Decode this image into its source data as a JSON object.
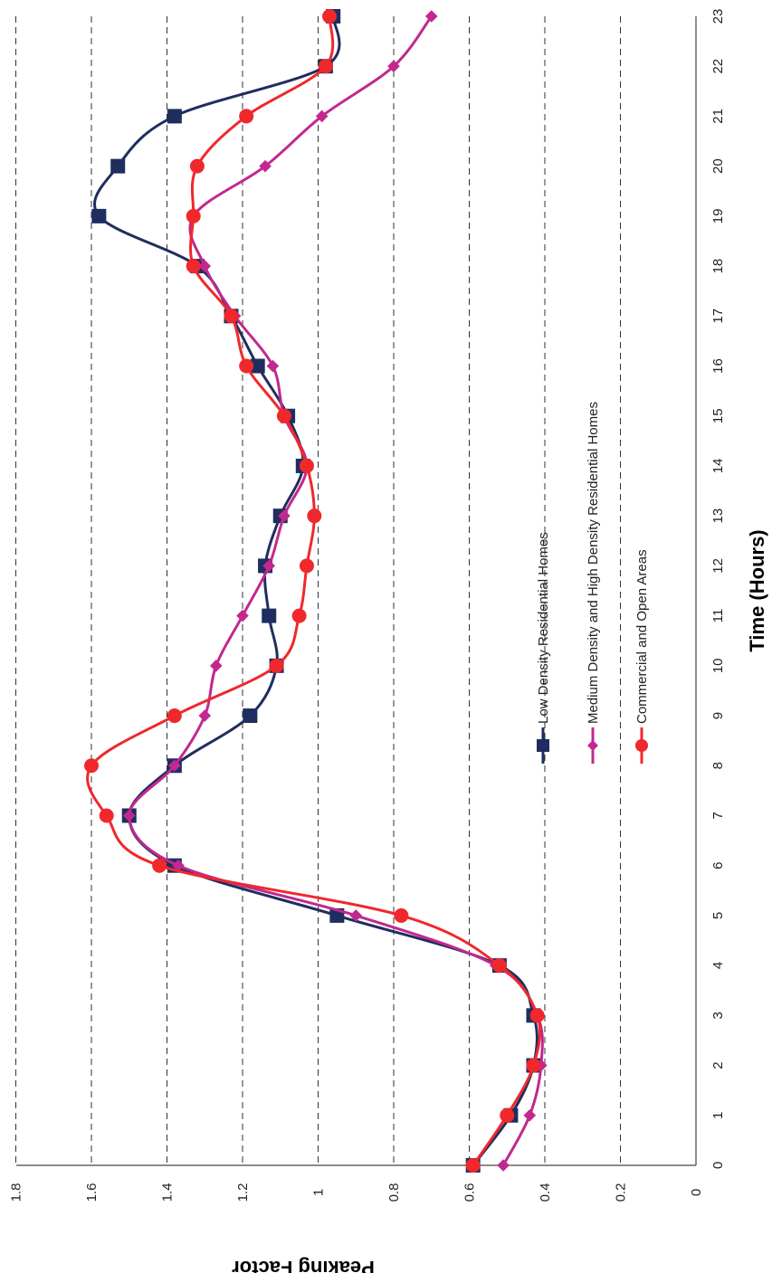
{
  "chart_data": {
    "type": "line",
    "title": "",
    "xlabel": "Time (Hours)",
    "ylabel": "Peaking Factor",
    "x": [
      0,
      1,
      2,
      3,
      4,
      5,
      6,
      7,
      8,
      9,
      10,
      11,
      12,
      13,
      14,
      15,
      16,
      17,
      18,
      19,
      20,
      21,
      22,
      23
    ],
    "x_tick_labels": [
      "0",
      "1",
      "2",
      "3",
      "4",
      "5",
      "6",
      "7",
      "8",
      "9",
      "10",
      "11",
      "12",
      "13",
      "14",
      "15",
      "16",
      "17",
      "18",
      "19",
      "20",
      "21",
      "22",
      "23"
    ],
    "y_tick_labels": [
      "0",
      "0.2",
      "0.4",
      "0.6",
      "0.8",
      "1",
      "1.2",
      "1.4",
      "1.6",
      "1.8"
    ],
    "ylim": [
      0,
      1.8
    ],
    "xlim": [
      0,
      23
    ],
    "grid": "horizontal-dashed",
    "rotation": "rotated 90 degrees clockwise",
    "legend_placement": "inside, center-right",
    "series": [
      {
        "name": "Low Density Residential Homes",
        "color": "#1f2e5e",
        "marker": "square",
        "values": [
          0.59,
          0.49,
          0.43,
          0.43,
          0.52,
          0.95,
          1.38,
          1.5,
          1.38,
          1.18,
          1.11,
          1.13,
          1.14,
          1.1,
          1.04,
          1.08,
          1.16,
          1.23,
          1.32,
          1.58,
          1.53,
          1.38,
          0.98,
          0.96
        ]
      },
      {
        "name": "Medium Density and High Density Residential Homes",
        "color": "#c2288f",
        "marker": "diamond",
        "values": [
          0.51,
          0.44,
          0.41,
          0.42,
          0.53,
          0.9,
          1.37,
          1.5,
          1.38,
          1.3,
          1.27,
          1.2,
          1.13,
          1.09,
          1.03,
          1.09,
          1.12,
          1.22,
          1.3,
          1.33,
          1.14,
          0.99,
          0.8,
          0.7
        ]
      },
      {
        "name": "Commercial and Open Areas",
        "color": "#f0282c",
        "marker": "circle",
        "values": [
          0.59,
          0.5,
          0.43,
          0.42,
          0.52,
          0.78,
          1.42,
          1.56,
          1.6,
          1.38,
          1.11,
          1.05,
          1.03,
          1.01,
          1.03,
          1.09,
          1.19,
          1.23,
          1.33,
          1.33,
          1.32,
          1.19,
          0.98,
          0.97
        ]
      }
    ]
  }
}
